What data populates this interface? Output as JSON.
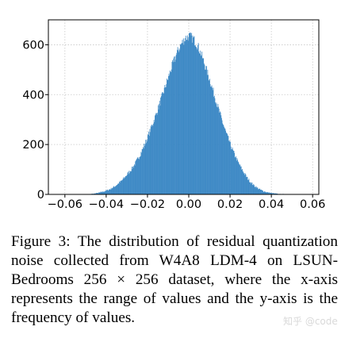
{
  "chart_data": {
    "type": "bar",
    "title": "",
    "xlabel": "",
    "ylabel": "",
    "xlim": [
      -0.068,
      0.063
    ],
    "ylim": [
      0,
      700
    ],
    "xticks": [
      -0.06,
      -0.04,
      -0.02,
      0.0,
      0.02,
      0.04,
      0.06
    ],
    "xtick_labels": [
      "−0.06",
      "−0.04",
      "−0.02",
      "0.00",
      "0.02",
      "0.04",
      "0.06"
    ],
    "yticks": [
      0,
      200,
      400,
      600
    ],
    "ytick_labels": [
      "0",
      "200",
      "400",
      "600"
    ],
    "grid": true,
    "bar_color": "#3a87c4",
    "series": [
      {
        "bin_centers": [
          -0.048,
          -0.046,
          -0.044,
          -0.042,
          -0.04,
          -0.038,
          -0.036,
          -0.034,
          -0.032,
          -0.03,
          -0.028,
          -0.026,
          -0.024,
          -0.022,
          -0.02,
          -0.018,
          -0.016,
          -0.014,
          -0.012,
          -0.01,
          -0.008,
          -0.006,
          -0.004,
          -0.002,
          0.0,
          0.002,
          0.004,
          0.006,
          0.008,
          0.01,
          0.012,
          0.014,
          0.016,
          0.018,
          0.02,
          0.022,
          0.024,
          0.026,
          0.028,
          0.03,
          0.032,
          0.034,
          0.036,
          0.038,
          0.04,
          0.042,
          0.044,
          0.046
        ],
        "values": [
          1,
          3,
          6,
          10,
          15,
          22,
          32,
          45,
          60,
          80,
          100,
          125,
          155,
          190,
          230,
          275,
          320,
          370,
          420,
          470,
          520,
          565,
          600,
          625,
          635,
          625,
          600,
          560,
          510,
          460,
          405,
          350,
          295,
          245,
          200,
          160,
          125,
          95,
          68,
          47,
          32,
          21,
          13,
          8,
          5,
          3,
          1,
          1
        ]
      }
    ]
  },
  "caption": {
    "text": "Figure 3:  The distribution of residual quantization noise collected from W4A8 LDM-4 on LSUN-Bedrooms 256 × 256 dataset, where the x-axis represents the range of values and the y-axis is the frequency of values."
  },
  "watermark": {
    "text": "知乎 @code"
  }
}
